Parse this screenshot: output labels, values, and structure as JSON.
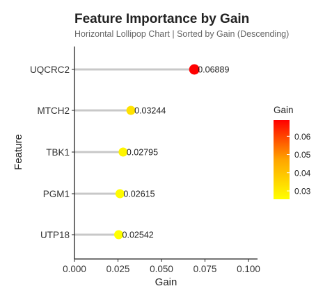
{
  "chart_data": {
    "type": "lollipop",
    "orientation": "horizontal",
    "title": "Feature Importance by Gain",
    "subtitle": "Horizontal Lollipop Chart | Sorted by Gain (Descending)",
    "xlabel": "Gain",
    "ylabel": "Feature",
    "xlim": [
      0,
      0.1
    ],
    "x_ticks": [
      "0.000",
      "0.025",
      "0.050",
      "0.075",
      "0.100"
    ],
    "categories": [
      "UQCRC2",
      "MTCH2",
      "TBK1",
      "PGM1",
      "UTP18"
    ],
    "values": [
      0.06889,
      0.03244,
      0.02795,
      0.02615,
      0.02542
    ],
    "value_labels": [
      "0.06889",
      "0.03244",
      "0.02795",
      "0.02615",
      "0.02542"
    ],
    "legend": {
      "title": "Gain",
      "ticks": [
        "0.06",
        "0.05",
        "0.04",
        "0.03"
      ],
      "placement": "right"
    },
    "colors": {
      "low": "#ffff00",
      "high": "#ff0000",
      "stem": "#c8c8c8",
      "axis": "#222222"
    },
    "grid": false
  }
}
